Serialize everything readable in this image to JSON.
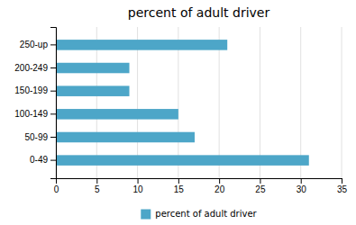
{
  "chart_data": {
    "type": "bar",
    "orientation": "horizontal",
    "title": "percent of adult driver",
    "categories": [
      "0-49",
      "50-99",
      "100-149",
      "150-199",
      "200-249",
      "250-up"
    ],
    "series": [
      {
        "name": "percent of adult driver",
        "color": "#4da6c8",
        "values": [
          31,
          17,
          15,
          9,
          9,
          21
        ]
      }
    ],
    "xlim": [
      0,
      35
    ],
    "xticks": [
      0,
      5,
      10,
      15,
      20,
      25,
      30,
      35
    ],
    "grid": true,
    "legend": "bottom"
  }
}
